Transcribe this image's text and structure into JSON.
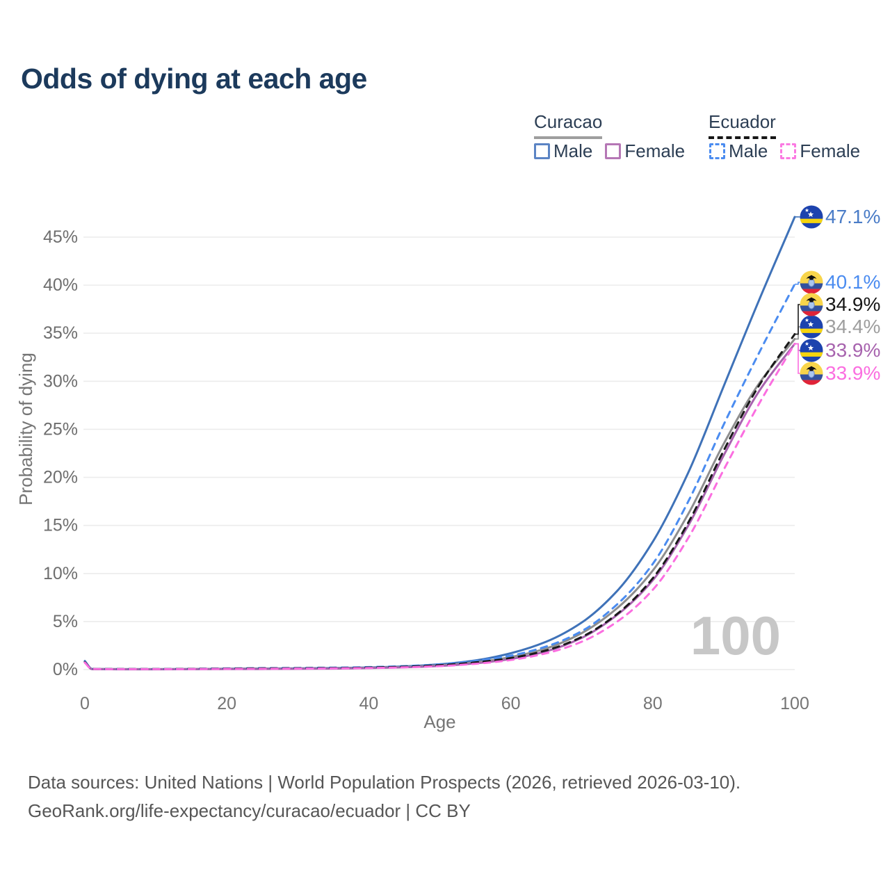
{
  "title": "Odds of dying at each age",
  "legend": {
    "groups": [
      {
        "name": "Curacao",
        "line_style": "solid",
        "underline_color": "#9e9e9e",
        "items": [
          {
            "label": "Male",
            "color": "#5b84c4"
          },
          {
            "label": "Female",
            "color": "#b577b5"
          }
        ]
      },
      {
        "name": "Ecuador",
        "line_style": "dashed",
        "underline_color": "#161616",
        "items": [
          {
            "label": "Male",
            "color": "#4b8cf0"
          },
          {
            "label": "Female",
            "color": "#fb7ae2"
          }
        ]
      }
    ]
  },
  "footer": {
    "line1": "Data sources: United Nations | World Population Prospects (2026, retrieved 2026-03-10).",
    "line2": "GeoRank.org/life-expectancy/curacao/ecuador | CC BY"
  },
  "chart_data": {
    "type": "line",
    "title": "Odds of dying at each age",
    "xlabel": "Age",
    "ylabel": "Probability of dying",
    "xlim": [
      0,
      100
    ],
    "ylim_percent": [
      0,
      47.5
    ],
    "x_ticks": [
      0,
      20,
      40,
      60,
      80,
      100
    ],
    "y_ticks_percent": [
      0,
      5,
      10,
      15,
      20,
      25,
      30,
      35,
      40,
      45
    ],
    "grid": "horizontal-only",
    "legend_position": "top-right",
    "age_watermark": "100",
    "x": [
      0,
      1,
      2,
      5,
      10,
      15,
      20,
      25,
      30,
      35,
      40,
      45,
      50,
      55,
      60,
      65,
      70,
      75,
      80,
      85,
      90,
      95,
      100
    ],
    "series": [
      {
        "id": "curacao-male",
        "name": "Curacao Male",
        "country": "Curacao",
        "sex": "Male",
        "color": "#3f72b8",
        "dash": "solid",
        "flag": "curacao",
        "end_label": "47.1%",
        "end_value": 47.1,
        "label_color": "#4a7cc7",
        "label_y_hint": 312,
        "values": [
          0.9,
          0.07,
          0.05,
          0.04,
          0.04,
          0.06,
          0.09,
          0.11,
          0.13,
          0.16,
          0.22,
          0.33,
          0.55,
          0.95,
          1.7,
          2.9,
          4.9,
          8.2,
          13.3,
          20.5,
          29.5,
          38.5,
          47.1
        ]
      },
      {
        "id": "curacao-total",
        "name": "Curacao",
        "country": "Curacao",
        "sex": "Both",
        "color": "#8e8e8e",
        "dash": "solid",
        "flag": "curacao",
        "end_label": "34.4%",
        "end_value": 34.4,
        "label_color": "#9e9e9e",
        "label_y_hint": 470,
        "values": [
          0.8,
          0.06,
          0.05,
          0.04,
          0.04,
          0.05,
          0.07,
          0.09,
          0.1,
          0.13,
          0.18,
          0.27,
          0.44,
          0.75,
          1.3,
          2.2,
          3.8,
          6.4,
          10.3,
          16.2,
          23.5,
          29.8,
          34.4
        ]
      },
      {
        "id": "curacao-female",
        "name": "Curacao Female",
        "country": "Curacao",
        "sex": "Female",
        "color": "#a763ae",
        "dash": "solid",
        "flag": "curacao",
        "end_label": "33.9%",
        "end_value": 33.9,
        "label_color": "#a763ae",
        "label_y_hint": 504,
        "values": [
          0.75,
          0.05,
          0.04,
          0.03,
          0.03,
          0.04,
          0.05,
          0.06,
          0.08,
          0.1,
          0.15,
          0.23,
          0.38,
          0.65,
          1.1,
          1.9,
          3.3,
          5.7,
          9.3,
          15.0,
          22.3,
          29.0,
          33.9
        ]
      },
      {
        "id": "ecuador-male",
        "name": "Ecuador Male",
        "country": "Ecuador",
        "sex": "Male",
        "color": "#4b8cf0",
        "dash": "dashed",
        "flag": "ecuador",
        "end_label": "40.1%",
        "end_value": 40.1,
        "label_color": "#4b8cf0",
        "label_y_hint": 406,
        "values": [
          0.85,
          0.08,
          0.06,
          0.05,
          0.05,
          0.08,
          0.12,
          0.15,
          0.17,
          0.2,
          0.26,
          0.36,
          0.55,
          0.9,
          1.45,
          2.4,
          4.0,
          6.8,
          11.0,
          17.5,
          25.5,
          33.0,
          40.1
        ]
      },
      {
        "id": "ecuador-total",
        "name": "Ecuador",
        "country": "Ecuador",
        "sex": "Both",
        "color": "#1a1a1a",
        "dash": "dashed",
        "flag": "ecuador",
        "end_label": "34.9%",
        "end_value": 34.9,
        "label_color": "#161616",
        "label_y_hint": 438,
        "values": [
          0.78,
          0.07,
          0.05,
          0.05,
          0.05,
          0.07,
          0.1,
          0.12,
          0.14,
          0.16,
          0.21,
          0.3,
          0.46,
          0.75,
          1.2,
          2.0,
          3.4,
          5.8,
          9.5,
          15.3,
          22.8,
          29.6,
          34.9
        ]
      },
      {
        "id": "ecuador-female",
        "name": "Ecuador Female",
        "country": "Ecuador",
        "sex": "Female",
        "color": "#fb6ee0",
        "dash": "dashed",
        "flag": "ecuador",
        "end_label": "33.9%",
        "end_value": 33.9,
        "label_color": "#fb6ee0",
        "label_y_hint": 537,
        "values": [
          0.72,
          0.06,
          0.05,
          0.04,
          0.04,
          0.05,
          0.07,
          0.08,
          0.1,
          0.12,
          0.16,
          0.23,
          0.36,
          0.6,
          1.0,
          1.7,
          2.9,
          5.0,
          8.3,
          13.7,
          20.8,
          27.7,
          33.9
        ]
      }
    ]
  }
}
